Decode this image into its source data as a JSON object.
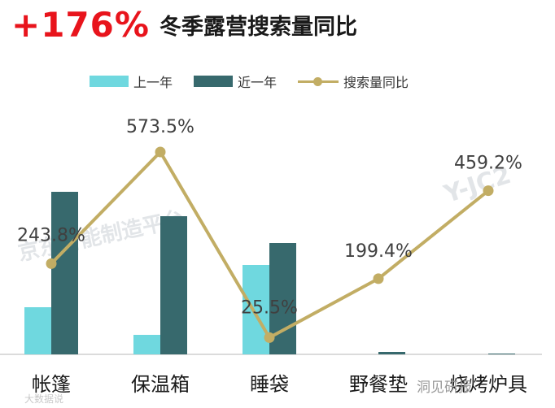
{
  "header": {
    "big_number": "+176%",
    "title": "冬季露营搜索量同比"
  },
  "colors": {
    "last_year": "#6fd8df",
    "this_year": "#37696d",
    "line": "#c2ad64",
    "headline": "#e8141c",
    "axis": "#cfcfcf"
  },
  "watermark": {
    "brand_en": "Y-JC2",
    "brand_cn": "京东智能制造平台"
  },
  "footer": {
    "source_left": "大数据说",
    "source_right": "洞见研报"
  },
  "chart_data": {
    "type": "bar",
    "categories": [
      "帐篷",
      "保温箱",
      "睡袋",
      "野餐垫",
      "烧烤炉具"
    ],
    "series": [
      {
        "name": "上一年",
        "type": "bar",
        "values": [
          58,
          24,
          110,
          0,
          0
        ]
      },
      {
        "name": "近一年",
        "type": "bar",
        "values": [
          200,
          170,
          137,
          3,
          1
        ]
      },
      {
        "name": "搜索量同比",
        "type": "line",
        "values": [
          243.8,
          573.5,
          25.5,
          199.4,
          459.2
        ],
        "labels": [
          "243.8%",
          "573.5%",
          "25.5%",
          "199.4%",
          "459.2%"
        ]
      }
    ],
    "legend_position": "top",
    "grid": false
  }
}
